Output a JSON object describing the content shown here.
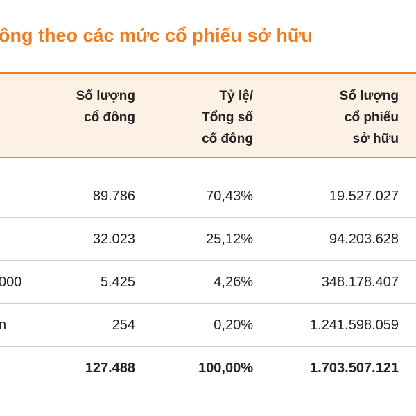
{
  "title": "ông theo các mức cổ phiếu sở hữu",
  "table": {
    "headers": [
      [
        "Số lượng",
        "cổ đông"
      ],
      [
        "Tỷ lệ/",
        "Tổng số",
        "cổ đông"
      ],
      [
        "Số lượng",
        "cổ phiếu",
        "sở hữu"
      ]
    ],
    "rows": [
      {
        "cells": [
          "89.786",
          "70,43%",
          "19.527.027"
        ]
      },
      {
        "cells": [
          "32.023",
          "25,12%",
          "94.203.628"
        ]
      },
      {
        "label": "000",
        "cells": [
          "5.425",
          "4,26%",
          "348.178.407"
        ]
      },
      {
        "label": "n",
        "cells": [
          "254",
          "0,20%",
          "1.241.598.059"
        ]
      }
    ],
    "total": [
      "127.488",
      "100,00%",
      "1.703.507.121"
    ]
  }
}
